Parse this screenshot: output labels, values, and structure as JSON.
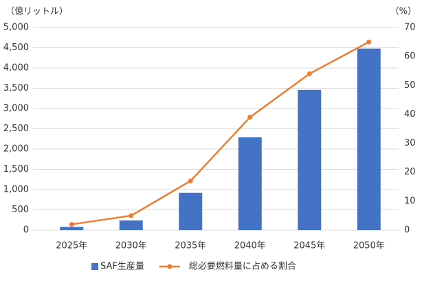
{
  "chart_data": {
    "type": "bar-line",
    "y_label": "（億リットル）",
    "y2_label": "（%）",
    "categories": [
      "2025年",
      "2030年",
      "2035年",
      "2040年",
      "2045年",
      "2050年"
    ],
    "series": [
      {
        "name": "SAF生産量",
        "type": "bar",
        "color": "#4472c4",
        "values": [
          80,
          240,
          920,
          2290,
          3460,
          4480
        ]
      },
      {
        "name": "総必要燃料量に占める割合",
        "type": "line",
        "axis": "y2",
        "color": "#ed7d31",
        "values": [
          2,
          5,
          17,
          39,
          54,
          65
        ]
      }
    ],
    "ylim": [
      0,
      5000
    ],
    "yticks": [
      0,
      500,
      {
        "value": 1000,
        "label": "1,000"
      },
      {
        "value": 1500,
        "label": "1,500"
      },
      {
        "value": 2000,
        "label": "2,000"
      },
      {
        "value": 2500,
        "label": "2,500"
      },
      {
        "value": 3000,
        "label": "3,000"
      },
      {
        "value": 3500,
        "label": "3,500"
      },
      {
        "value": 4000,
        "label": "4,000"
      },
      {
        "value": 4500,
        "label": "4,500"
      },
      {
        "value": 5000,
        "label": "5,000"
      }
    ],
    "y2lim": [
      0,
      70
    ],
    "y2ticks": [
      0,
      10,
      20,
      30,
      40,
      50,
      60,
      70
    ],
    "grid": true,
    "legend": "bottom"
  }
}
